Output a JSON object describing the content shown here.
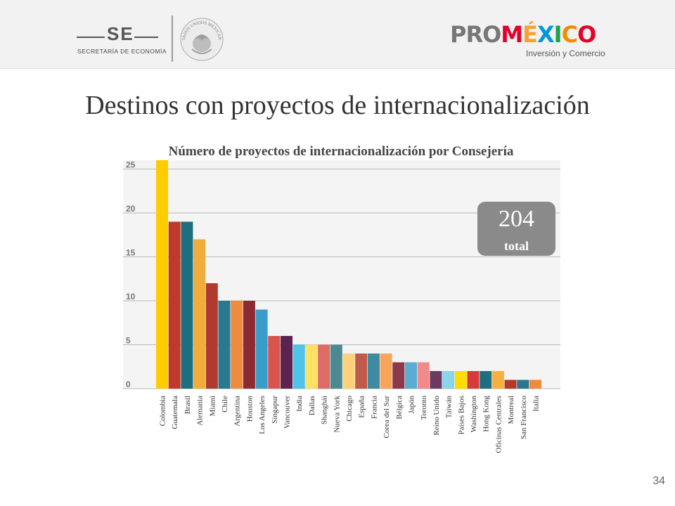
{
  "header": {
    "se_logo": {
      "letters": "SE",
      "subtitle": "SECRETARÍA DE ECONOMÍA",
      "seal_text": "ESTADOS UNIDOS MEXICANOS",
      "seal_icon": "mexican-coat-of-arms-icon"
    },
    "promexico_logo": {
      "pro": "PRO",
      "mexico": "MÉXICO",
      "tagline": "Inversión y Comercio",
      "colors": [
        "#777777",
        "#e4002b",
        "#f9a12e",
        "#009ad9",
        "#1aa14a",
        "#f28b00"
      ]
    }
  },
  "slide_title": "Destinos con proyectos de internacionalización",
  "chart_data": {
    "type": "bar",
    "title": "Número de proyectos de internacionalización por Consejería",
    "xlabel": "",
    "ylabel": "",
    "ylim": [
      0,
      26
    ],
    "yticks": [
      0,
      5,
      10,
      15,
      20,
      25
    ],
    "grid": true,
    "categories": [
      "Colombia",
      "Guatemala",
      "Brasil",
      "Alemania",
      "Miami",
      "Chile",
      "Argentina",
      "Houston",
      "Los Angeles",
      "Singapur",
      "Vancouver",
      "India",
      "Dallas",
      "Shanghái",
      "Nueva York",
      "Chicago",
      "España",
      "Francia",
      "Corea del Sur",
      "Bélgica",
      "Japón",
      "Toronto",
      "Reino Unido",
      "Taiwán",
      "Países Bajos",
      "Washington",
      "Hong Kong",
      "Oficinas Centrales",
      "Montreal",
      "San Francisco",
      "Italia"
    ],
    "values": [
      26,
      19,
      19,
      17,
      12,
      10,
      10,
      10,
      9,
      6,
      6,
      5,
      5,
      5,
      5,
      4,
      4,
      4,
      4,
      3,
      3,
      3,
      2,
      2,
      2,
      2,
      2,
      2,
      1,
      1,
      1
    ],
    "colors": [
      "#ffcc00",
      "#c0392b",
      "#1f6e80",
      "#f0ad3c",
      "#b03a2e",
      "#2a7890",
      "#f08a3c",
      "#8a2b33",
      "#3a9cc8",
      "#d9534f",
      "#5c2350",
      "#4fc3e8",
      "#ffe066",
      "#dd6b66",
      "#4a8a90",
      "#ffd27a",
      "#c05a4a",
      "#3e8aa0",
      "#f8a45a",
      "#8a3a4a",
      "#5aacd4",
      "#f28a8a",
      "#6a3a60",
      "#8ad4ec",
      "#ffdd00",
      "#d63a3a",
      "#1f6e80",
      "#f5b041",
      "#b03a2e",
      "#2a7890",
      "#f08a3c"
    ]
  },
  "badge": {
    "value": "204",
    "label": "total"
  },
  "page_number": "34"
}
